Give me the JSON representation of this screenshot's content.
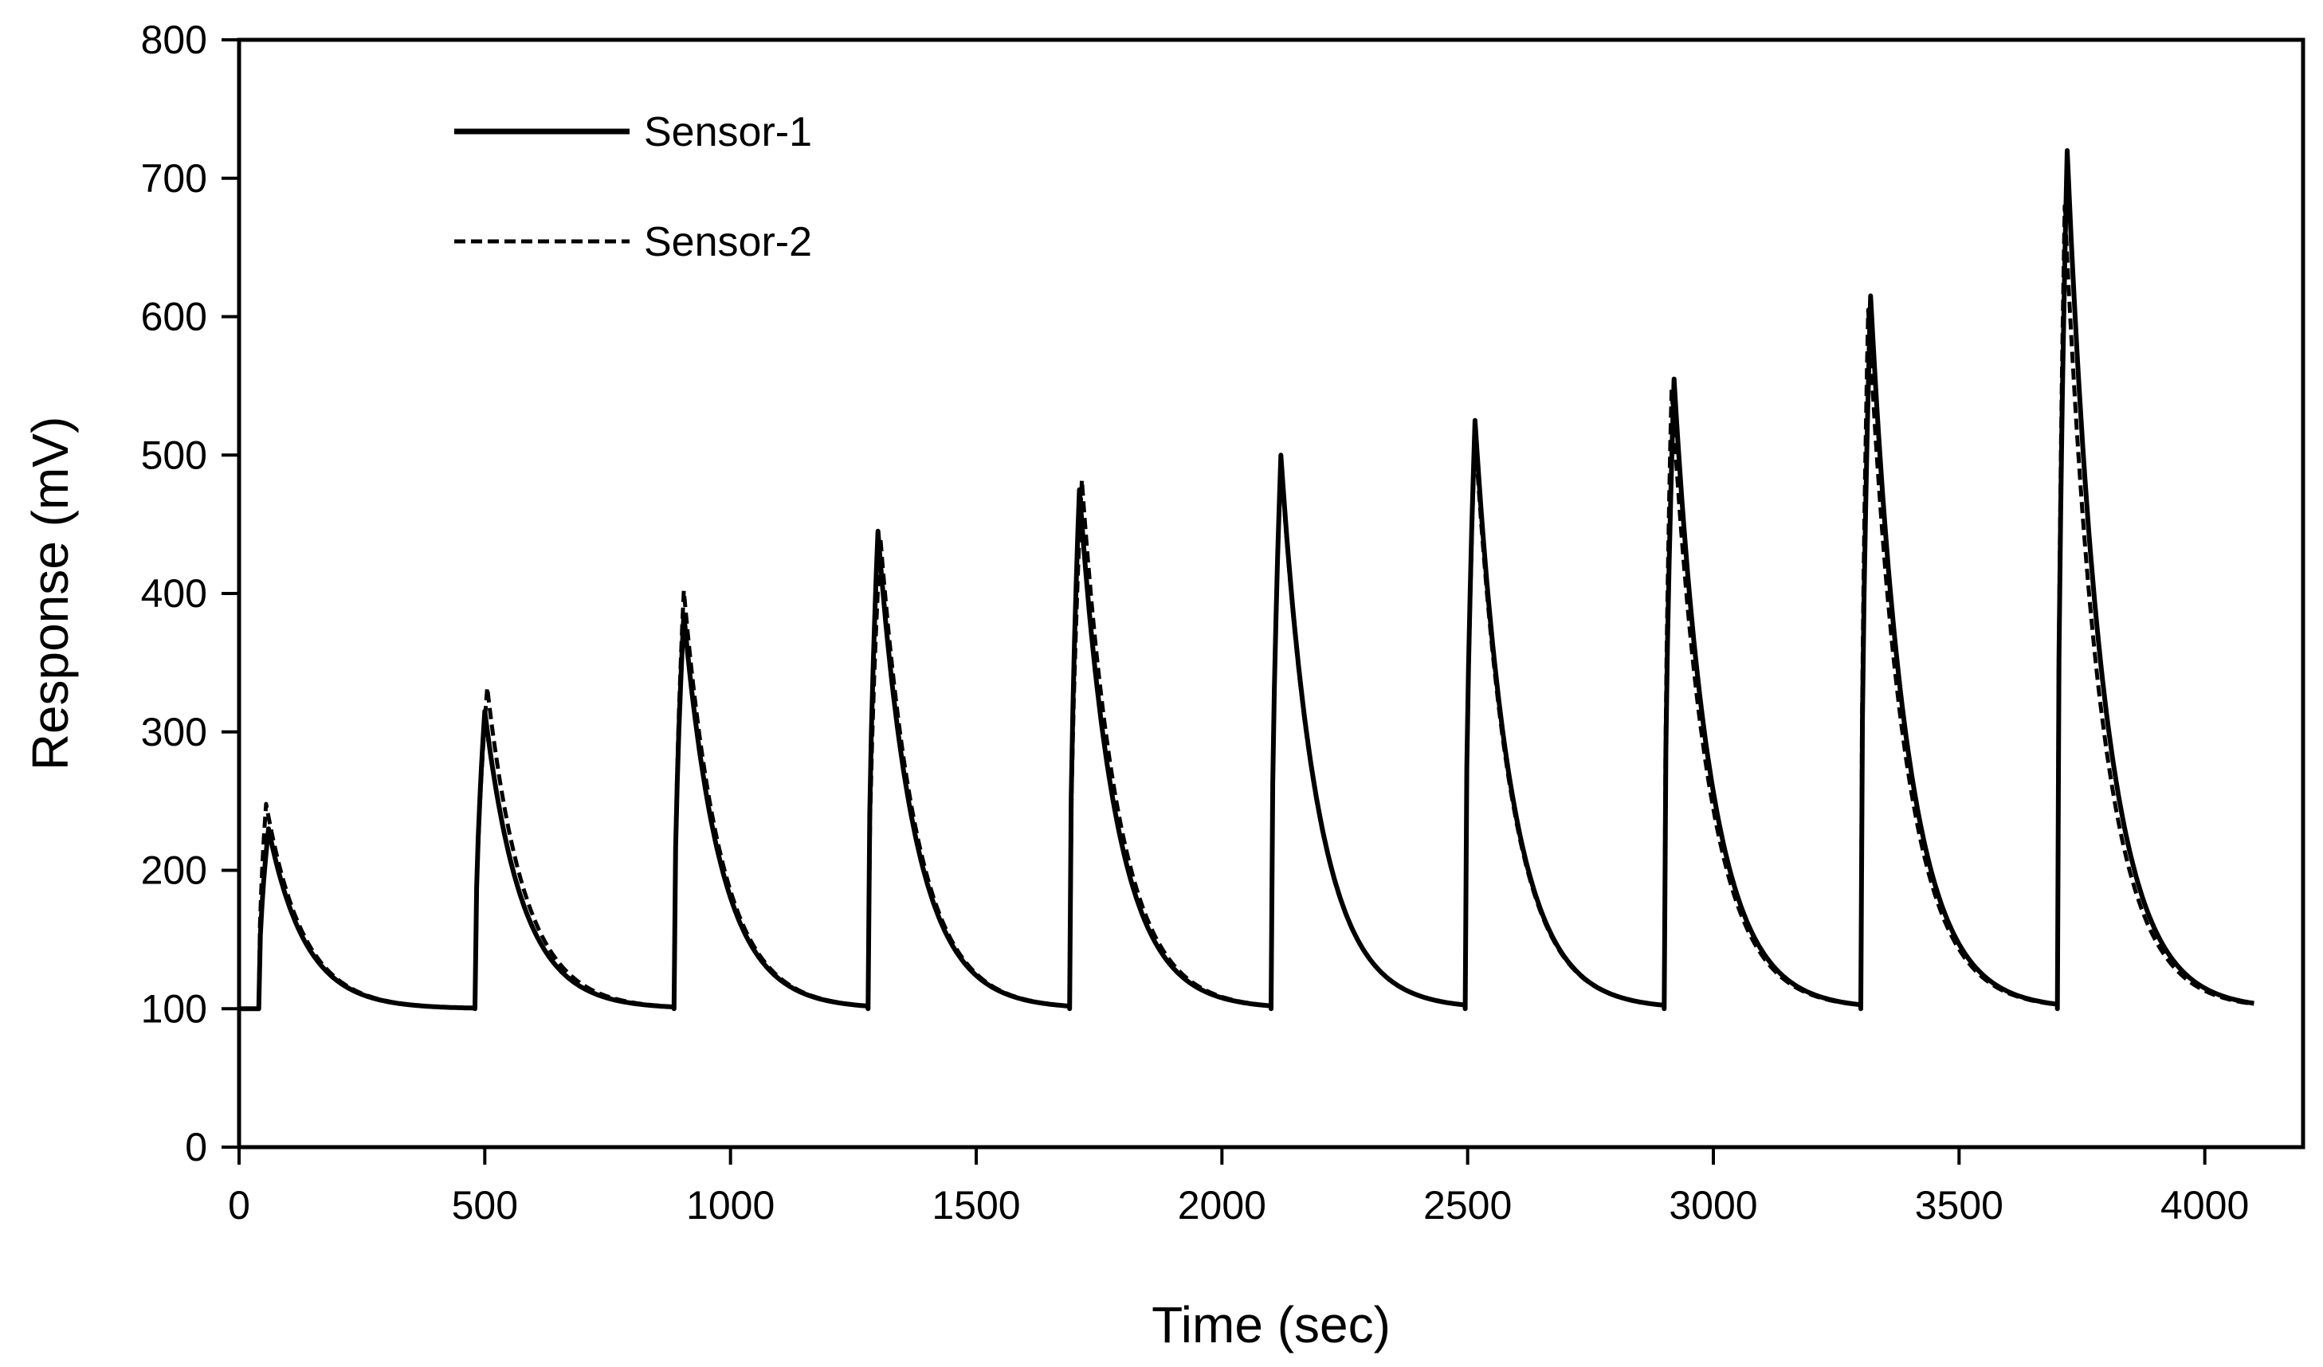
{
  "chart_data": {
    "type": "line",
    "title": "",
    "xlabel": "Time (sec)",
    "ylabel": "Response (mV)",
    "xlim": [
      0,
      4200
    ],
    "ylim": [
      0,
      800
    ],
    "xticks": [
      0,
      500,
      1000,
      1500,
      2000,
      2500,
      3000,
      3500,
      4000
    ],
    "yticks": [
      0,
      100,
      200,
      300,
      400,
      500,
      600,
      700,
      800
    ],
    "xtick_labels": [
      "0",
      "500",
      "1000",
      "1500",
      "2000",
      "2500",
      "3000",
      "3500",
      "4000"
    ],
    "ytick_labels": [
      "0",
      "100",
      "200",
      "300",
      "400",
      "500",
      "600",
      "700",
      "800"
    ],
    "grid": false,
    "legend_position": "top-left",
    "pulse_onsets_sec": [
      40,
      480,
      885,
      1280,
      1690,
      2100,
      2495,
      2900,
      3300,
      3700
    ],
    "series_end_sec": 4100,
    "baseline_mV": 100,
    "series": [
      {
        "name": "Sensor-1",
        "style": "solid",
        "color": "#000000",
        "peaks_mV": [
          230,
          315,
          385,
          445,
          475,
          500,
          525,
          555,
          615,
          720
        ],
        "peak_times_sec": [
          60,
          500,
          905,
          1300,
          1710,
          2120,
          2515,
          2920,
          3320,
          3720
        ]
      },
      {
        "name": "Sensor-2",
        "style": "dashed",
        "color": "#000000",
        "peaks_mV": [
          248,
          332,
          402,
          440,
          482,
          496,
          515,
          548,
          605,
          680
        ],
        "peak_times_sec": [
          55,
          505,
          905,
          1305,
          1715,
          2120,
          2515,
          2915,
          3315,
          3715
        ]
      }
    ]
  }
}
